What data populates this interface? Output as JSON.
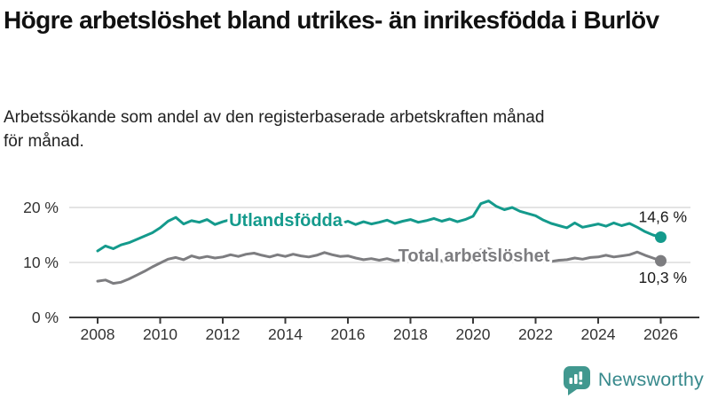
{
  "title": "Högre arbetslöshet bland utrikes- än inrikesfödda i Burlöv",
  "subtitle": "Arbetssökande som andel av den registerbaserade arbetskraften månad för månad.",
  "branding": {
    "name": "Newsworthy"
  },
  "colors": {
    "series": [
      "#149a8c",
      "#7d7d80"
    ],
    "grid": "#dcdcdc",
    "axis": "#3a3a3a",
    "title_text": "#111111",
    "subtitle_text": "#222222",
    "end_label_text": "#1a1a1a",
    "logo_icon": "#41988f",
    "logo_text": "#37898c",
    "background": "#ffffff"
  },
  "chart_data": {
    "type": "line",
    "unit": "%",
    "x_start": 2008.0,
    "x_step": 0.25,
    "xlim": [
      2007.1,
      2027.2
    ],
    "ylim": [
      0,
      23
    ],
    "grid": "horizontal",
    "legend_position": "inline-labels",
    "x_ticks": [
      2008,
      2010,
      2012,
      2014,
      2016,
      2018,
      2020,
      2022,
      2024,
      2026
    ],
    "y_ticks": [
      {
        "value": 0,
        "label": "0 %"
      },
      {
        "value": 10,
        "label": "10 %"
      },
      {
        "value": 20,
        "label": "20 %"
      }
    ],
    "series": [
      {
        "name": "Utlandsfödda",
        "end_label": "14,6 %",
        "last_value": 14.6,
        "values": [
          12.1,
          13.0,
          12.5,
          13.2,
          13.6,
          14.2,
          14.8,
          15.4,
          16.3,
          17.5,
          18.2,
          17.0,
          17.6,
          17.3,
          17.8,
          16.9,
          17.4,
          17.8,
          17.3,
          17.1,
          17.6,
          18.0,
          17.4,
          17.7,
          17.2,
          17.7,
          17.9,
          17.4,
          17.7,
          18.0,
          17.3,
          17.0,
          17.5,
          16.9,
          17.4,
          17.0,
          17.3,
          17.7,
          17.1,
          17.5,
          17.8,
          17.3,
          17.6,
          18.0,
          17.5,
          17.9,
          17.4,
          17.8,
          18.4,
          20.7,
          21.2,
          20.2,
          19.6,
          20.0,
          19.3,
          18.9,
          18.5,
          17.7,
          17.1,
          16.7,
          16.3,
          17.2,
          16.4,
          16.7,
          17.0,
          16.6,
          17.2,
          16.7,
          17.1,
          16.4,
          15.6,
          15.0,
          14.6
        ]
      },
      {
        "name": "Total arbetslöshet",
        "end_label": "10,3 %",
        "last_value": 10.3,
        "values": [
          6.6,
          6.8,
          6.2,
          6.4,
          7.0,
          7.7,
          8.4,
          9.2,
          9.9,
          10.6,
          10.9,
          10.5,
          11.2,
          10.8,
          11.1,
          10.8,
          11.0,
          11.4,
          11.1,
          11.5,
          11.7,
          11.3,
          11.0,
          11.4,
          11.1,
          11.5,
          11.2,
          11.0,
          11.3,
          11.8,
          11.4,
          11.1,
          11.2,
          10.8,
          10.5,
          10.7,
          10.4,
          10.7,
          10.3,
          10.5,
          10.2,
          10.5,
          10.3,
          10.6,
          10.3,
          10.6,
          10.4,
          10.7,
          11.1,
          12.3,
          12.5,
          11.9,
          11.4,
          11.1,
          10.8,
          10.6,
          10.4,
          10.6,
          10.2,
          10.4,
          10.5,
          10.8,
          10.6,
          10.9,
          11.0,
          11.3,
          11.0,
          11.2,
          11.4,
          11.9,
          11.3,
          10.8,
          10.3
        ]
      }
    ]
  }
}
